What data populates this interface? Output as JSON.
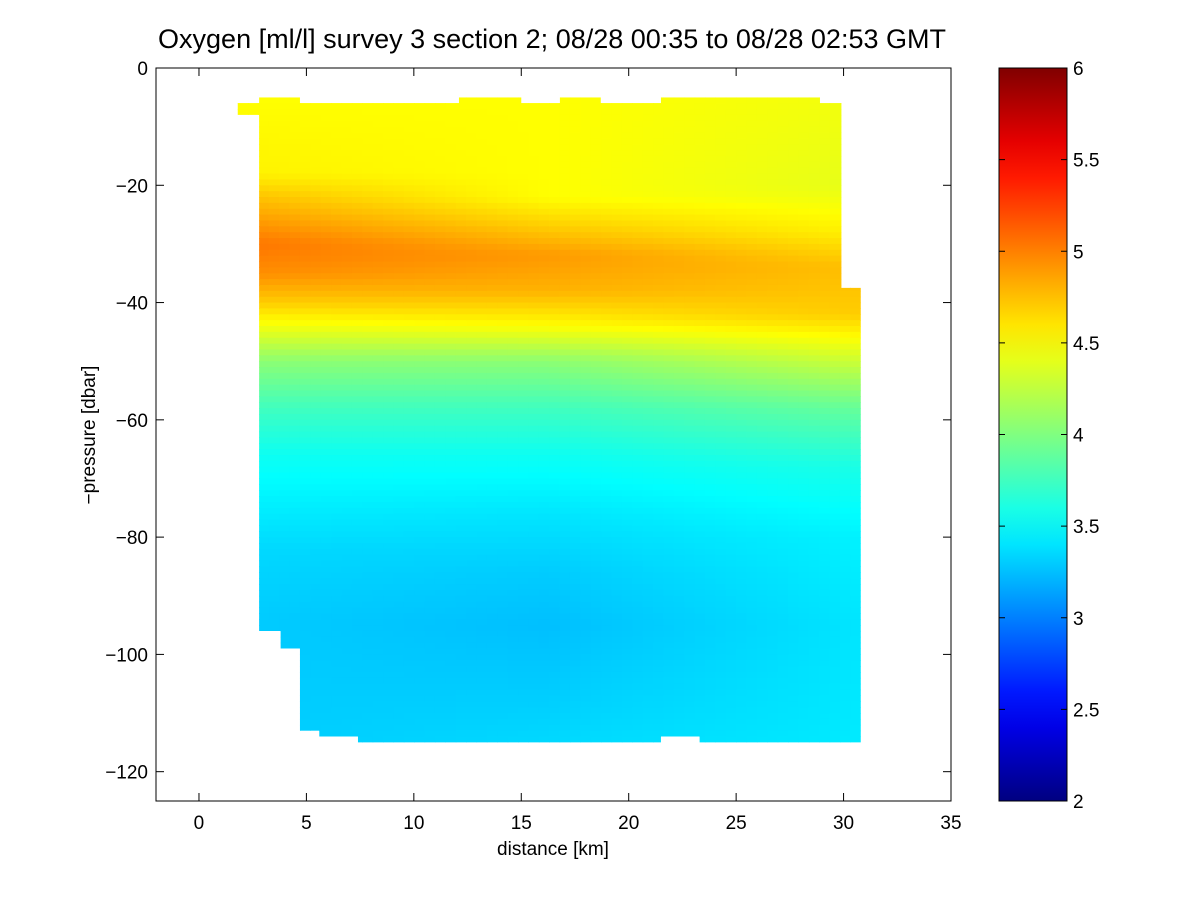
{
  "figure": {
    "title": "Oxygen [ml/l] survey 3 section 2; 08/28 00:35 to 08/28 02:53 GMT"
  },
  "chart_data": {
    "type": "heatmap",
    "title": "Oxygen [ml/l] survey 3 section 2; 08/28 00:35 to 08/28 02:53 GMT",
    "xlabel": "distance [km]",
    "ylabel": "−pressure [dbar]",
    "xlim": [
      -2,
      35
    ],
    "ylim": [
      -125,
      0
    ],
    "xticks": [
      0,
      5,
      10,
      15,
      20,
      25,
      30,
      35
    ],
    "xtick_labels": [
      "0",
      "5",
      "10",
      "15",
      "20",
      "25",
      "30",
      "35"
    ],
    "yticks": [
      0,
      -20,
      -40,
      -60,
      -80,
      -100,
      -120
    ],
    "ytick_labels": [
      "0",
      "−20",
      "−40",
      "−60",
      "−80",
      "−100",
      "−120"
    ],
    "colorbar": {
      "colormap": "jet",
      "range": [
        2,
        6
      ],
      "ticks": [
        2,
        2.5,
        3,
        3.5,
        4,
        4.5,
        5,
        5.5,
        6
      ],
      "tick_labels": [
        "2",
        "2.5",
        "3",
        "3.5",
        "4",
        "4.5",
        "5",
        "5.5",
        "6"
      ]
    },
    "data_extent": {
      "distance_km": [
        1.8,
        30.8
      ],
      "pressure_dbar": [
        -115,
        -5
      ]
    },
    "station_profiles": [
      {
        "x_start": 1.8,
        "x_end": 2.8,
        "top": -6,
        "bottom": -8
      },
      {
        "x_start": 2.8,
        "x_end": 3.8,
        "top": -5,
        "bottom": -96
      },
      {
        "x_start": 3.8,
        "x_end": 4.7,
        "top": -5,
        "bottom": -99
      },
      {
        "x_start": 4.7,
        "x_end": 5.6,
        "top": -6,
        "bottom": -113
      },
      {
        "x_start": 5.6,
        "x_end": 7.4,
        "top": -6,
        "bottom": -114
      },
      {
        "x_start": 7.4,
        "x_end": 12.1,
        "top": -6,
        "bottom": -115
      },
      {
        "x_start": 12.1,
        "x_end": 15.0,
        "top": -5,
        "bottom": -115
      },
      {
        "x_start": 15.0,
        "x_end": 16.8,
        "top": -6,
        "bottom": -115
      },
      {
        "x_start": 16.8,
        "x_end": 18.7,
        "top": -5,
        "bottom": -115
      },
      {
        "x_start": 18.7,
        "x_end": 21.5,
        "top": -6,
        "bottom": -115
      },
      {
        "x_start": 21.5,
        "x_end": 23.3,
        "top": -5,
        "bottom": -114
      },
      {
        "x_start": 23.3,
        "x_end": 28.9,
        "top": -5,
        "bottom": -115
      },
      {
        "x_start": 28.9,
        "x_end": 29.9,
        "top": -6,
        "bottom": -115
      },
      {
        "x_start": 29.9,
        "x_end": 30.8,
        "top": -37.5,
        "bottom": -115
      }
    ],
    "oxygen_profile_left": [
      {
        "p": -5,
        "v": 4.5
      },
      {
        "p": -18,
        "v": 4.55
      },
      {
        "p": -22,
        "v": 4.75
      },
      {
        "p": -26,
        "v": 4.9
      },
      {
        "p": -30,
        "v": 5.05
      },
      {
        "p": -35,
        "v": 4.95
      },
      {
        "p": -40,
        "v": 4.7
      },
      {
        "p": -44,
        "v": 4.45
      },
      {
        "p": -50,
        "v": 4.05
      },
      {
        "p": -58,
        "v": 3.75
      },
      {
        "p": -66,
        "v": 3.55
      },
      {
        "p": -74,
        "v": 3.45
      },
      {
        "p": -82,
        "v": 3.35
      },
      {
        "p": -94,
        "v": 3.3
      },
      {
        "p": -115,
        "v": 3.3
      }
    ],
    "oxygen_profile_mid": [
      {
        "p": -5,
        "v": 4.5
      },
      {
        "p": -22,
        "v": 4.5
      },
      {
        "p": -26,
        "v": 4.65
      },
      {
        "p": -32,
        "v": 4.9
      },
      {
        "p": -38,
        "v": 4.8
      },
      {
        "p": -44,
        "v": 4.5
      },
      {
        "p": -50,
        "v": 4.05
      },
      {
        "p": -58,
        "v": 3.75
      },
      {
        "p": -66,
        "v": 3.55
      },
      {
        "p": -76,
        "v": 3.4
      },
      {
        "p": -86,
        "v": 3.3
      },
      {
        "p": -95,
        "v": 3.25
      },
      {
        "p": -106,
        "v": 3.3
      },
      {
        "p": -115,
        "v": 3.35
      }
    ],
    "oxygen_profile_right": [
      {
        "p": -5,
        "v": 4.45
      },
      {
        "p": -20,
        "v": 4.4
      },
      {
        "p": -28,
        "v": 4.55
      },
      {
        "p": -34,
        "v": 4.75
      },
      {
        "p": -42,
        "v": 4.7
      },
      {
        "p": -50,
        "v": 4.3
      },
      {
        "p": -58,
        "v": 3.9
      },
      {
        "p": -68,
        "v": 3.6
      },
      {
        "p": -80,
        "v": 3.45
      },
      {
        "p": -95,
        "v": 3.4
      },
      {
        "p": -115,
        "v": 3.42
      }
    ]
  }
}
